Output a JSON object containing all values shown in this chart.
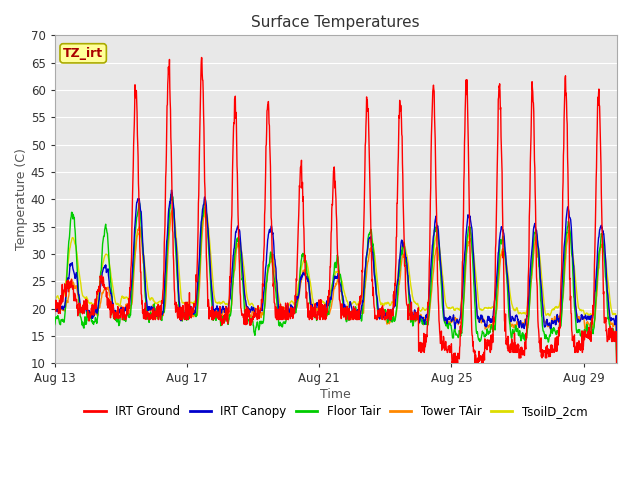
{
  "title": "Surface Temperatures",
  "xlabel": "Time",
  "ylabel": "Temperature (C)",
  "ylim": [
    10,
    70
  ],
  "yticks": [
    10,
    15,
    20,
    25,
    30,
    35,
    40,
    45,
    50,
    55,
    60,
    65,
    70
  ],
  "xtick_labels": [
    "Aug 13",
    "Aug 17",
    "Aug 21",
    "Aug 25",
    "Aug 29"
  ],
  "xtick_positions": [
    0,
    4,
    8,
    12,
    16
  ],
  "n_days": 17,
  "fig_bg": "#ffffff",
  "plot_bg": "#e8e8e8",
  "grid_color": "#ffffff",
  "legend_entries": [
    "IRT Ground",
    "IRT Canopy",
    "Floor Tair",
    "Tower TAir",
    "TsoilD_2cm"
  ],
  "legend_colors": [
    "#ff0000",
    "#0000cc",
    "#00cc00",
    "#ff8800",
    "#dddd00"
  ],
  "annotation_text": "TZ_irt",
  "annotation_bg": "#ffff99",
  "annotation_border": "#aaaa00",
  "annotation_text_color": "#aa0000",
  "lw": 1.0
}
